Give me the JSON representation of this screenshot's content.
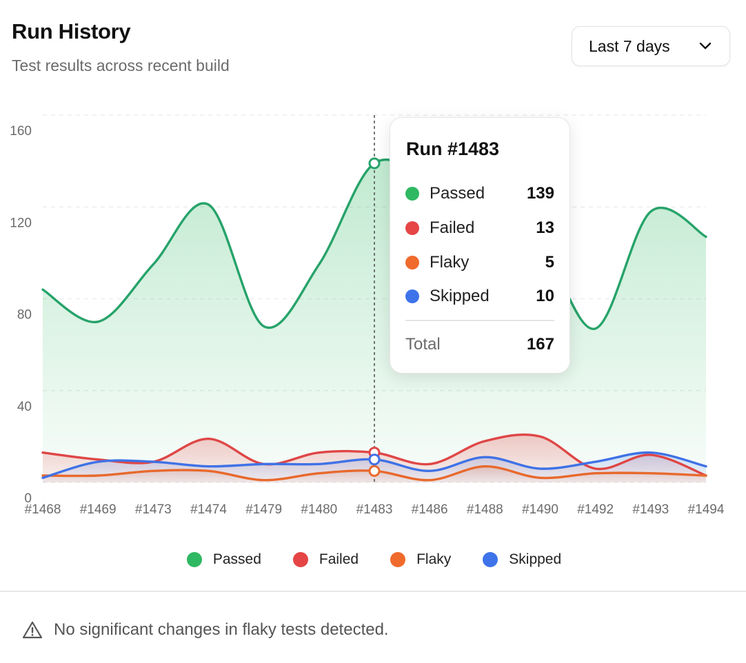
{
  "header": {
    "title": "Run History",
    "subtitle": "Test results across recent build",
    "range_select": {
      "value": "Last 7 days",
      "icon": "chevron-down-icon"
    }
  },
  "chart_data": {
    "type": "area",
    "categories": [
      "#1468",
      "#1469",
      "#1473",
      "#1474",
      "#1479",
      "#1480",
      "#1483",
      "#1486",
      "#1488",
      "#1490",
      "#1492",
      "#1493",
      "#1494"
    ],
    "y_ticks": [
      "0",
      "40",
      "80",
      "120",
      "160"
    ],
    "ylim": [
      0,
      160
    ],
    "grid": true,
    "series": [
      {
        "name": "Passed",
        "color": "#2fb862",
        "line": "#27a36a",
        "values": [
          84,
          70,
          95,
          121,
          68,
          95,
          139,
          128,
          98,
          102,
          67,
          118,
          107
        ]
      },
      {
        "name": "Failed",
        "color": "#e54545",
        "line": "#df4646",
        "values": [
          13,
          10,
          9,
          19,
          8,
          13,
          13,
          8,
          18,
          20,
          6,
          12,
          3
        ]
      },
      {
        "name": "Flaky",
        "color": "#f06a2c",
        "line": "#e8692c",
        "values": [
          3,
          3,
          5,
          5,
          1,
          4,
          5,
          1,
          7,
          2,
          4,
          4,
          3
        ]
      },
      {
        "name": "Skipped",
        "color": "#3e73ea",
        "line": "#3f72e6",
        "values": [
          2,
          9,
          9,
          7,
          8,
          8,
          10,
          5,
          11,
          6,
          9,
          13,
          7
        ]
      }
    ],
    "highlight_index": 6,
    "legend_position": "bottom-center"
  },
  "tooltip": {
    "title": "Run #1483",
    "rows": [
      {
        "label": "Passed",
        "value": "139",
        "color": "#2fb862"
      },
      {
        "label": "Failed",
        "value": "13",
        "color": "#e54545"
      },
      {
        "label": "Flaky",
        "value": "5",
        "color": "#f06a2c"
      },
      {
        "label": "Skipped",
        "value": "10",
        "color": "#3e73ea"
      }
    ],
    "total_label": "Total",
    "total_value": "167"
  },
  "legend": [
    {
      "label": "Passed",
      "color": "#2fb862"
    },
    {
      "label": "Failed",
      "color": "#e54545"
    },
    {
      "label": "Flaky",
      "color": "#f06a2c"
    },
    {
      "label": "Skipped",
      "color": "#3e73ea"
    }
  ],
  "footer": {
    "message": "No significant changes in flaky tests detected.",
    "icon": "warning-icon"
  }
}
